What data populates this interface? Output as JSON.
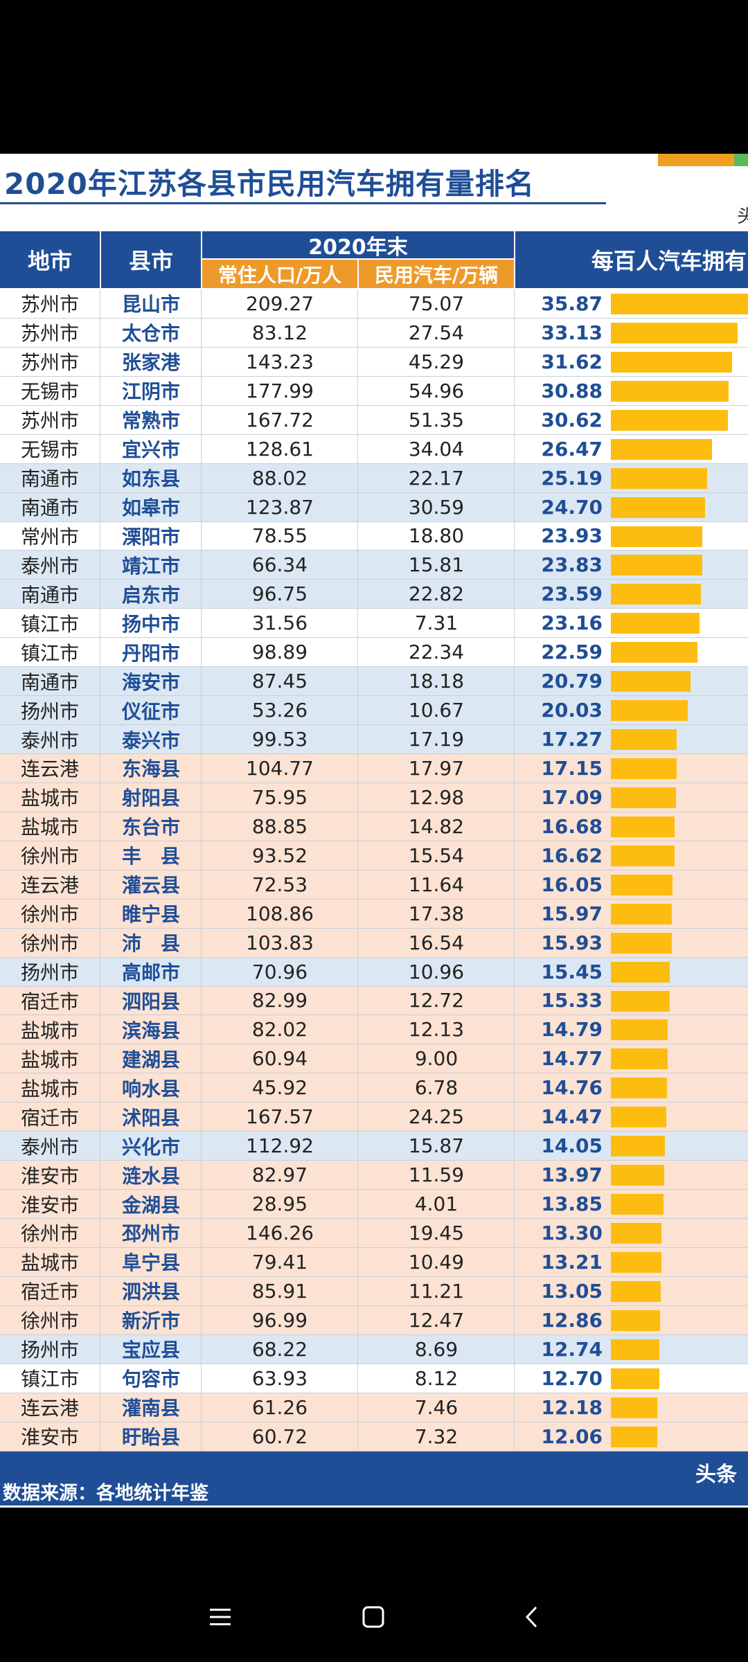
{
  "title": "2020年江苏各县市民用汽车拥有量排名",
  "corner_char": "头",
  "header": {
    "city": "地市",
    "county": "县市",
    "year": "2020年末",
    "population": "常住人口/万人",
    "cars": "民用汽车/万辆",
    "rate": "每百人汽车拥有"
  },
  "colors": {
    "navy": "#1f4e96",
    "orange_header": "#ee9a2a",
    "bar": "#fdbd10",
    "row_white": "#ffffff",
    "row_blue": "#dbe7f3",
    "row_peach": "#fbe2d3"
  },
  "rows": [
    {
      "city": "苏州市",
      "county": "昆山市",
      "population": "209.27",
      "cars": "75.07",
      "rate": "35.87",
      "color": "white"
    },
    {
      "city": "苏州市",
      "county": "太仓市",
      "population": "83.12",
      "cars": "27.54",
      "rate": "33.13",
      "color": "white"
    },
    {
      "city": "苏州市",
      "county": "张家港",
      "population": "143.23",
      "cars": "45.29",
      "rate": "31.62",
      "color": "white"
    },
    {
      "city": "无锡市",
      "county": "江阴市",
      "population": "177.99",
      "cars": "54.96",
      "rate": "30.88",
      "color": "white"
    },
    {
      "city": "苏州市",
      "county": "常熟市",
      "population": "167.72",
      "cars": "51.35",
      "rate": "30.62",
      "color": "white"
    },
    {
      "city": "无锡市",
      "county": "宜兴市",
      "population": "128.61",
      "cars": "34.04",
      "rate": "26.47",
      "color": "white"
    },
    {
      "city": "南通市",
      "county": "如东县",
      "population": "88.02",
      "cars": "22.17",
      "rate": "25.19",
      "color": "blue"
    },
    {
      "city": "南通市",
      "county": "如皋市",
      "population": "123.87",
      "cars": "30.59",
      "rate": "24.70",
      "color": "blue"
    },
    {
      "city": "常州市",
      "county": "溧阳市",
      "population": "78.55",
      "cars": "18.80",
      "rate": "23.93",
      "color": "white"
    },
    {
      "city": "泰州市",
      "county": "靖江市",
      "population": "66.34",
      "cars": "15.81",
      "rate": "23.83",
      "color": "blue"
    },
    {
      "city": "南通市",
      "county": "启东市",
      "population": "96.75",
      "cars": "22.82",
      "rate": "23.59",
      "color": "blue"
    },
    {
      "city": "镇江市",
      "county": "扬中市",
      "population": "31.56",
      "cars": "7.31",
      "rate": "23.16",
      "color": "white"
    },
    {
      "city": "镇江市",
      "county": "丹阳市",
      "population": "98.89",
      "cars": "22.34",
      "rate": "22.59",
      "color": "white"
    },
    {
      "city": "南通市",
      "county": "海安市",
      "population": "87.45",
      "cars": "18.18",
      "rate": "20.79",
      "color": "blue"
    },
    {
      "city": "扬州市",
      "county": "仪征市",
      "population": "53.26",
      "cars": "10.67",
      "rate": "20.03",
      "color": "blue"
    },
    {
      "city": "泰州市",
      "county": "泰兴市",
      "population": "99.53",
      "cars": "17.19",
      "rate": "17.27",
      "color": "blue"
    },
    {
      "city": "连云港",
      "county": "东海县",
      "population": "104.77",
      "cars": "17.97",
      "rate": "17.15",
      "color": "peach"
    },
    {
      "city": "盐城市",
      "county": "射阳县",
      "population": "75.95",
      "cars": "12.98",
      "rate": "17.09",
      "color": "peach"
    },
    {
      "city": "盐城市",
      "county": "东台市",
      "population": "88.85",
      "cars": "14.82",
      "rate": "16.68",
      "color": "peach"
    },
    {
      "city": "徐州市",
      "county": "丰　县",
      "population": "93.52",
      "cars": "15.54",
      "rate": "16.62",
      "color": "peach"
    },
    {
      "city": "连云港",
      "county": "灌云县",
      "population": "72.53",
      "cars": "11.64",
      "rate": "16.05",
      "color": "peach"
    },
    {
      "city": "徐州市",
      "county": "睢宁县",
      "population": "108.86",
      "cars": "17.38",
      "rate": "15.97",
      "color": "peach"
    },
    {
      "city": "徐州市",
      "county": "沛　县",
      "population": "103.83",
      "cars": "16.54",
      "rate": "15.93",
      "color": "peach"
    },
    {
      "city": "扬州市",
      "county": "高邮市",
      "population": "70.96",
      "cars": "10.96",
      "rate": "15.45",
      "color": "blue"
    },
    {
      "city": "宿迁市",
      "county": "泗阳县",
      "population": "82.99",
      "cars": "12.72",
      "rate": "15.33",
      "color": "peach"
    },
    {
      "city": "盐城市",
      "county": "滨海县",
      "population": "82.02",
      "cars": "12.13",
      "rate": "14.79",
      "color": "peach"
    },
    {
      "city": "盐城市",
      "county": "建湖县",
      "population": "60.94",
      "cars": "9.00",
      "rate": "14.77",
      "color": "peach"
    },
    {
      "city": "盐城市",
      "county": "响水县",
      "population": "45.92",
      "cars": "6.78",
      "rate": "14.76",
      "color": "peach"
    },
    {
      "city": "宿迁市",
      "county": "沭阳县",
      "population": "167.57",
      "cars": "24.25",
      "rate": "14.47",
      "color": "peach"
    },
    {
      "city": "泰州市",
      "county": "兴化市",
      "population": "112.92",
      "cars": "15.87",
      "rate": "14.05",
      "color": "blue"
    },
    {
      "city": "淮安市",
      "county": "涟水县",
      "population": "82.97",
      "cars": "11.59",
      "rate": "13.97",
      "color": "peach"
    },
    {
      "city": "淮安市",
      "county": "金湖县",
      "population": "28.95",
      "cars": "4.01",
      "rate": "13.85",
      "color": "peach"
    },
    {
      "city": "徐州市",
      "county": "邳州市",
      "population": "146.26",
      "cars": "19.45",
      "rate": "13.30",
      "color": "peach"
    },
    {
      "city": "盐城市",
      "county": "阜宁县",
      "population": "79.41",
      "cars": "10.49",
      "rate": "13.21",
      "color": "peach"
    },
    {
      "city": "宿迁市",
      "county": "泗洪县",
      "population": "85.91",
      "cars": "11.21",
      "rate": "13.05",
      "color": "peach"
    },
    {
      "city": "徐州市",
      "county": "新沂市",
      "population": "96.99",
      "cars": "12.47",
      "rate": "12.86",
      "color": "peach"
    },
    {
      "city": "扬州市",
      "county": "宝应县",
      "population": "68.22",
      "cars": "8.69",
      "rate": "12.74",
      "color": "blue"
    },
    {
      "city": "镇江市",
      "county": "句容市",
      "population": "63.93",
      "cars": "8.12",
      "rate": "12.70",
      "color": "white"
    },
    {
      "city": "连云港",
      "county": "灌南县",
      "population": "61.26",
      "cars": "7.46",
      "rate": "12.18",
      "color": "peach"
    },
    {
      "city": "淮安市",
      "county": "盱眙县",
      "population": "60.72",
      "cars": "7.32",
      "rate": "12.06",
      "color": "peach"
    }
  ],
  "footer": {
    "source": "数据来源：各地统计年鉴",
    "brand": "头条"
  },
  "navbar": {
    "menu_icon": "menu-icon",
    "home_icon": "home-square-icon",
    "back_icon": "back-chevron-icon"
  }
}
